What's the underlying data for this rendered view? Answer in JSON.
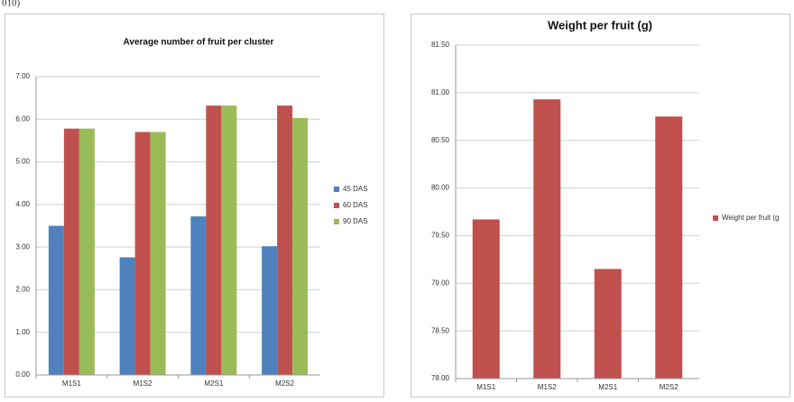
{
  "annotation": "010)",
  "chart_data": [
    {
      "type": "bar",
      "title": "Average number of fruit per cluster",
      "categories": [
        "M1S1",
        "M1S2",
        "M2S1",
        "M2S2"
      ],
      "series": [
        {
          "name": "45 DAS",
          "color": "#4f81bd",
          "values": [
            3.5,
            2.76,
            3.72,
            3.02
          ]
        },
        {
          "name": "60 DAS",
          "color": "#c0504d",
          "values": [
            5.78,
            5.7,
            6.32,
            6.32
          ]
        },
        {
          "name": "90 DAS",
          "color": "#9bbb59",
          "values": [
            5.78,
            5.7,
            6.32,
            6.03
          ]
        }
      ],
      "ylim": [
        0,
        7
      ],
      "yticks": [
        {
          "value": 0,
          "label": "0.00"
        },
        {
          "value": 1,
          "label": "1.00"
        },
        {
          "value": 2,
          "label": "2.00"
        },
        {
          "value": 3,
          "label": "3.00"
        },
        {
          "value": 4,
          "label": "4.00"
        },
        {
          "value": 5,
          "label": "5.00"
        },
        {
          "value": 6,
          "label": "6.00"
        },
        {
          "value": 7,
          "label": "7.00"
        }
      ],
      "grid": true,
      "legend": "right"
    },
    {
      "type": "bar",
      "title": "Weight per fruit (g)",
      "categories": [
        "M1S1",
        "M1S2",
        "M2S1",
        "M2S2"
      ],
      "series": [
        {
          "name": "Weight per fruit (g",
          "color": "#c0504d",
          "values": [
            79.67,
            80.93,
            79.15,
            80.75
          ]
        }
      ],
      "ylim": [
        78,
        81.5
      ],
      "yticks": [
        {
          "value": 78,
          "label": "78.00"
        },
        {
          "value": 78.5,
          "label": "78.50"
        },
        {
          "value": 79,
          "label": "79.00"
        },
        {
          "value": 79.5,
          "label": "79.50"
        },
        {
          "value": 80,
          "label": "80.00"
        },
        {
          "value": 80.5,
          "label": "80.50"
        },
        {
          "value": 81,
          "label": "81.00"
        },
        {
          "value": 81.5,
          "label": "81.50"
        }
      ],
      "grid": true,
      "legend": "right"
    }
  ]
}
